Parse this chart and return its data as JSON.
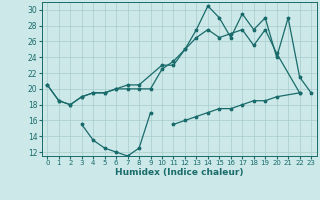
{
  "xlabel": "Humidex (Indice chaleur)",
  "xlim": [
    -0.5,
    23.5
  ],
  "ylim": [
    11.5,
    31
  ],
  "yticks": [
    12,
    14,
    16,
    18,
    20,
    22,
    24,
    26,
    28,
    30
  ],
  "xticks": [
    0,
    1,
    2,
    3,
    4,
    5,
    6,
    7,
    8,
    9,
    10,
    11,
    12,
    13,
    14,
    15,
    16,
    17,
    18,
    19,
    20,
    21,
    22,
    23
  ],
  "bg_color": "#cce8e8",
  "line_color": "#1a6b6b",
  "grid_color": "#a8cccc",
  "line1_y": [
    20.5,
    18.5,
    18.0,
    19.0,
    19.5,
    19.5,
    20.0,
    20.5,
    20.5,
    23.0,
    23.0,
    25.0,
    27.5,
    30.5,
    29.0,
    26.5,
    29.5,
    27.5,
    29.0,
    24.0,
    29.0,
    21.5,
    19.5
  ],
  "line1_x": [
    0,
    1,
    2,
    3,
    4,
    5,
    6,
    7,
    8,
    10,
    11,
    12,
    13,
    14,
    15,
    16,
    17,
    18,
    19,
    20,
    21,
    22,
    23
  ],
  "line2_y": [
    20.5,
    18.5,
    18.0,
    19.0,
    19.5,
    19.5,
    20.0,
    20.0,
    20.0,
    20.0,
    22.5,
    23.5,
    25.0,
    26.5,
    27.5,
    26.5,
    27.0,
    27.5,
    25.5,
    27.5,
    24.5,
    19.5
  ],
  "line2_x": [
    0,
    1,
    2,
    3,
    4,
    5,
    6,
    7,
    8,
    9,
    10,
    11,
    12,
    13,
    14,
    15,
    16,
    17,
    18,
    19,
    20,
    22
  ],
  "line3_y": [
    15.5,
    13.5,
    12.5,
    12.0,
    11.5,
    12.5,
    17.0
  ],
  "line3_x": [
    3,
    4,
    5,
    6,
    7,
    8,
    9
  ],
  "line4_y": [
    15.5,
    16.0,
    16.5,
    17.0,
    17.5,
    17.5,
    18.0,
    18.5,
    18.5,
    19.0,
    19.5
  ],
  "line4_x": [
    11,
    12,
    13,
    14,
    15,
    16,
    17,
    18,
    19,
    20,
    22
  ]
}
